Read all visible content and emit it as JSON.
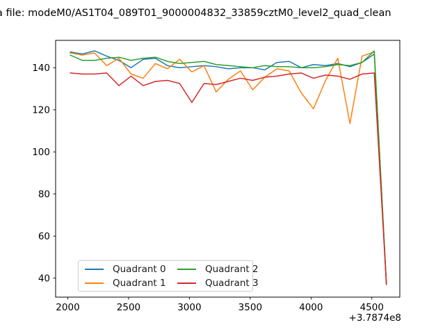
{
  "title": "a file: modeM0/AS1T04_089T01_9000004832_33859cztM0_level2_quad_clean",
  "chart_data": {
    "type": "line",
    "x": [
      2020,
      2120,
      2220,
      2320,
      2420,
      2520,
      2620,
      2720,
      2820,
      2920,
      3020,
      3120,
      3220,
      3320,
      3420,
      3520,
      3620,
      3720,
      3820,
      3920,
      4020,
      4120,
      4220,
      4320,
      4420,
      4520,
      4620
    ],
    "series": [
      {
        "name": "Quadrant 0",
        "color": "#1f77b4",
        "values": [
          147.5,
          146.5,
          148,
          145.5,
          143.5,
          140,
          144,
          144.5,
          141,
          140,
          140.5,
          141,
          140.5,
          139.5,
          140,
          140,
          139,
          142.5,
          143,
          140,
          141.5,
          141,
          142,
          140.5,
          142.5,
          146.5,
          37
        ]
      },
      {
        "name": "Quadrant 1",
        "color": "#ff7f0e",
        "values": [
          147,
          146,
          147,
          141,
          144.5,
          137,
          135,
          142,
          139.5,
          144,
          138,
          141,
          128.5,
          134.5,
          138.5,
          129.5,
          135.5,
          139.5,
          138.5,
          128,
          120.5,
          134,
          144.5,
          113.5,
          145.5,
          147.5,
          37
        ]
      },
      {
        "name": "Quadrant 2",
        "color": "#2ca02c",
        "values": [
          146,
          143.5,
          143.5,
          144.5,
          145,
          143.5,
          144.5,
          145,
          143,
          142,
          142.5,
          143,
          141.5,
          141,
          140.5,
          140,
          141,
          140.5,
          140.5,
          140,
          140,
          140.5,
          141.5,
          141,
          142.5,
          148,
          37
        ]
      },
      {
        "name": "Quadrant 3",
        "color": "#d62728",
        "values": [
          137.5,
          137,
          137,
          137.5,
          131.5,
          136,
          131.5,
          133.5,
          134,
          132.5,
          123.5,
          132.5,
          132,
          133.5,
          135,
          134,
          135.5,
          136,
          137,
          137.5,
          135,
          136.5,
          136,
          134.5,
          137,
          137.5,
          37
        ]
      }
    ],
    "xlim": [
      1900,
      4730
    ],
    "ylim": [
      31,
      153
    ],
    "xticks": [
      2000,
      2500,
      3000,
      3500,
      4000,
      4500
    ],
    "yticks": [
      40,
      60,
      80,
      100,
      120,
      140
    ],
    "x_offset_label": "+3.7874e8",
    "legend_position": "lower left",
    "legend_columns": 2,
    "grid": false,
    "axis_color": "#000000",
    "line_width": 1.5
  }
}
